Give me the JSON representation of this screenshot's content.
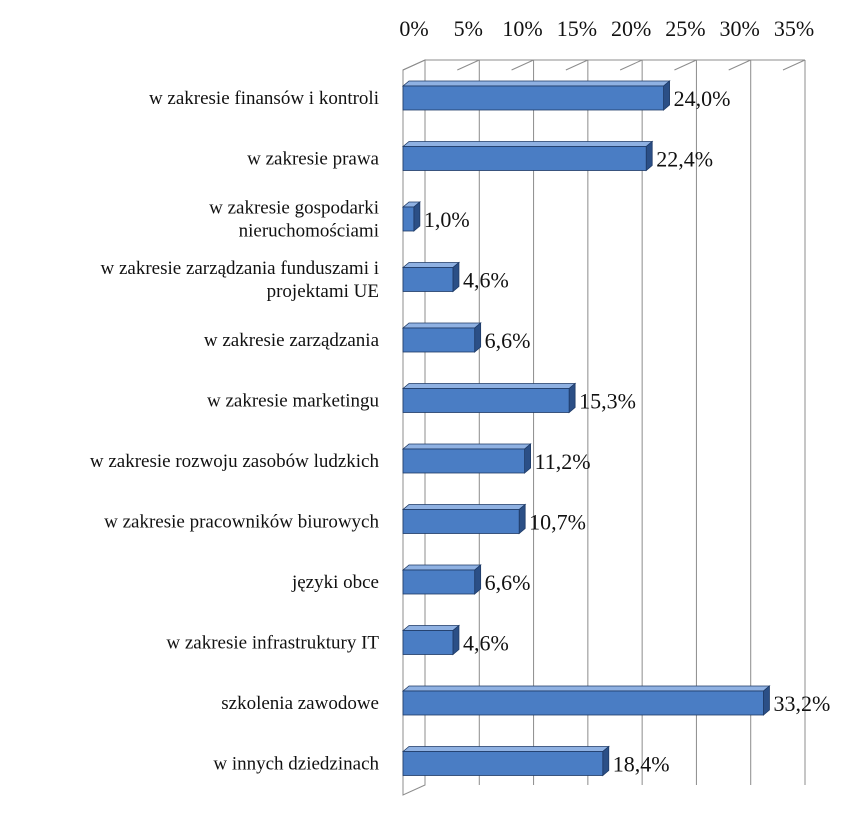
{
  "chart_data": {
    "type": "bar",
    "orientation": "horizontal",
    "style": "3d",
    "categories": [
      [
        "w zakresie finansów i kontroli"
      ],
      [
        "w zakresie prawa"
      ],
      [
        "w zakresie gospodarki",
        "nieruchomościami"
      ],
      [
        "w zakresie zarządzania funduszami i",
        "projektami UE"
      ],
      [
        "w zakresie zarządzania"
      ],
      [
        "w zakresie marketingu"
      ],
      [
        "w zakresie rozwoju zasobów ludzkich"
      ],
      [
        "w zakresie pracowników biurowych"
      ],
      [
        "języki obce"
      ],
      [
        "w zakresie infrastruktury IT"
      ],
      [
        "szkolenia zawodowe"
      ],
      [
        "w innych dziedzinach"
      ]
    ],
    "values": [
      24.0,
      22.4,
      1.0,
      4.6,
      6.6,
      15.3,
      11.2,
      10.7,
      6.6,
      4.6,
      33.2,
      18.4
    ],
    "data_labels": [
      "24,0%",
      "22,4%",
      "1,0%",
      "4,6%",
      "6,6%",
      "15,3%",
      "11,2%",
      "10,7%",
      "6,6%",
      "4,6%",
      "33,2%",
      "18,4%"
    ],
    "x_ticks": [
      "0%",
      "5%",
      "10%",
      "15%",
      "20%",
      "25%",
      "30%",
      "35%"
    ],
    "x_tick_values": [
      0,
      5,
      10,
      15,
      20,
      25,
      30,
      35
    ],
    "xlim": [
      0,
      35
    ],
    "x_axis_position": "top",
    "grid": true,
    "legend": "none",
    "colors": {
      "bar_front": "#4a7dc4",
      "bar_top": "#8fb1e2",
      "bar_side": "#2b4f86",
      "bar_outline": "#1e3a66",
      "grid": "#8c8c8c",
      "wall": "#ffffff"
    }
  }
}
